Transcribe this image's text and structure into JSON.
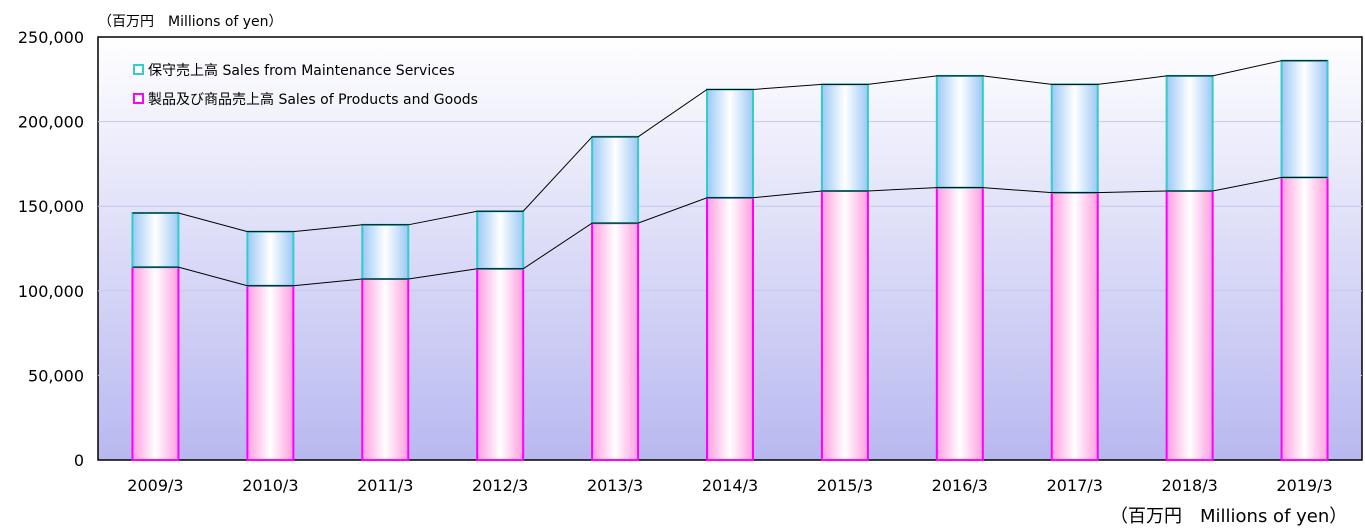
{
  "unit_label": "（百万円　Millions of yen）",
  "unit_label_bottom": "（百万円　Millions of yen）",
  "colors": {
    "maintenance_border": "#33CCCC",
    "products_border": "#FF00FF",
    "plot_bg_top": "#FFFFFF",
    "plot_bg_bottom": "#B8B8F0"
  },
  "chart_data": {
    "type": "bar",
    "stacked": true,
    "categories": [
      "2009/3",
      "2010/3",
      "2011/3",
      "2012/3",
      "2013/3",
      "2014/3",
      "2015/3",
      "2016/3",
      "2017/3",
      "2018/3",
      "2019/3"
    ],
    "series": [
      {
        "name": "製品及び商品売上高 Sales of Products and Goods",
        "values": [
          114000,
          103000,
          107000,
          113000,
          140000,
          155000,
          159000,
          161000,
          158000,
          159000,
          167000
        ]
      },
      {
        "name": "保守売上高 Sales from Maintenance Services",
        "values": [
          32000,
          32000,
          32000,
          34000,
          51000,
          64000,
          63000,
          66000,
          64000,
          68000,
          69000
        ]
      }
    ],
    "yticks": [
      "0",
      "50,000",
      "100,000",
      "150,000",
      "200,000",
      "250,000"
    ],
    "ylim": [
      0,
      250000
    ],
    "grid": true,
    "legend_position": "top-left",
    "series_lines": true
  }
}
